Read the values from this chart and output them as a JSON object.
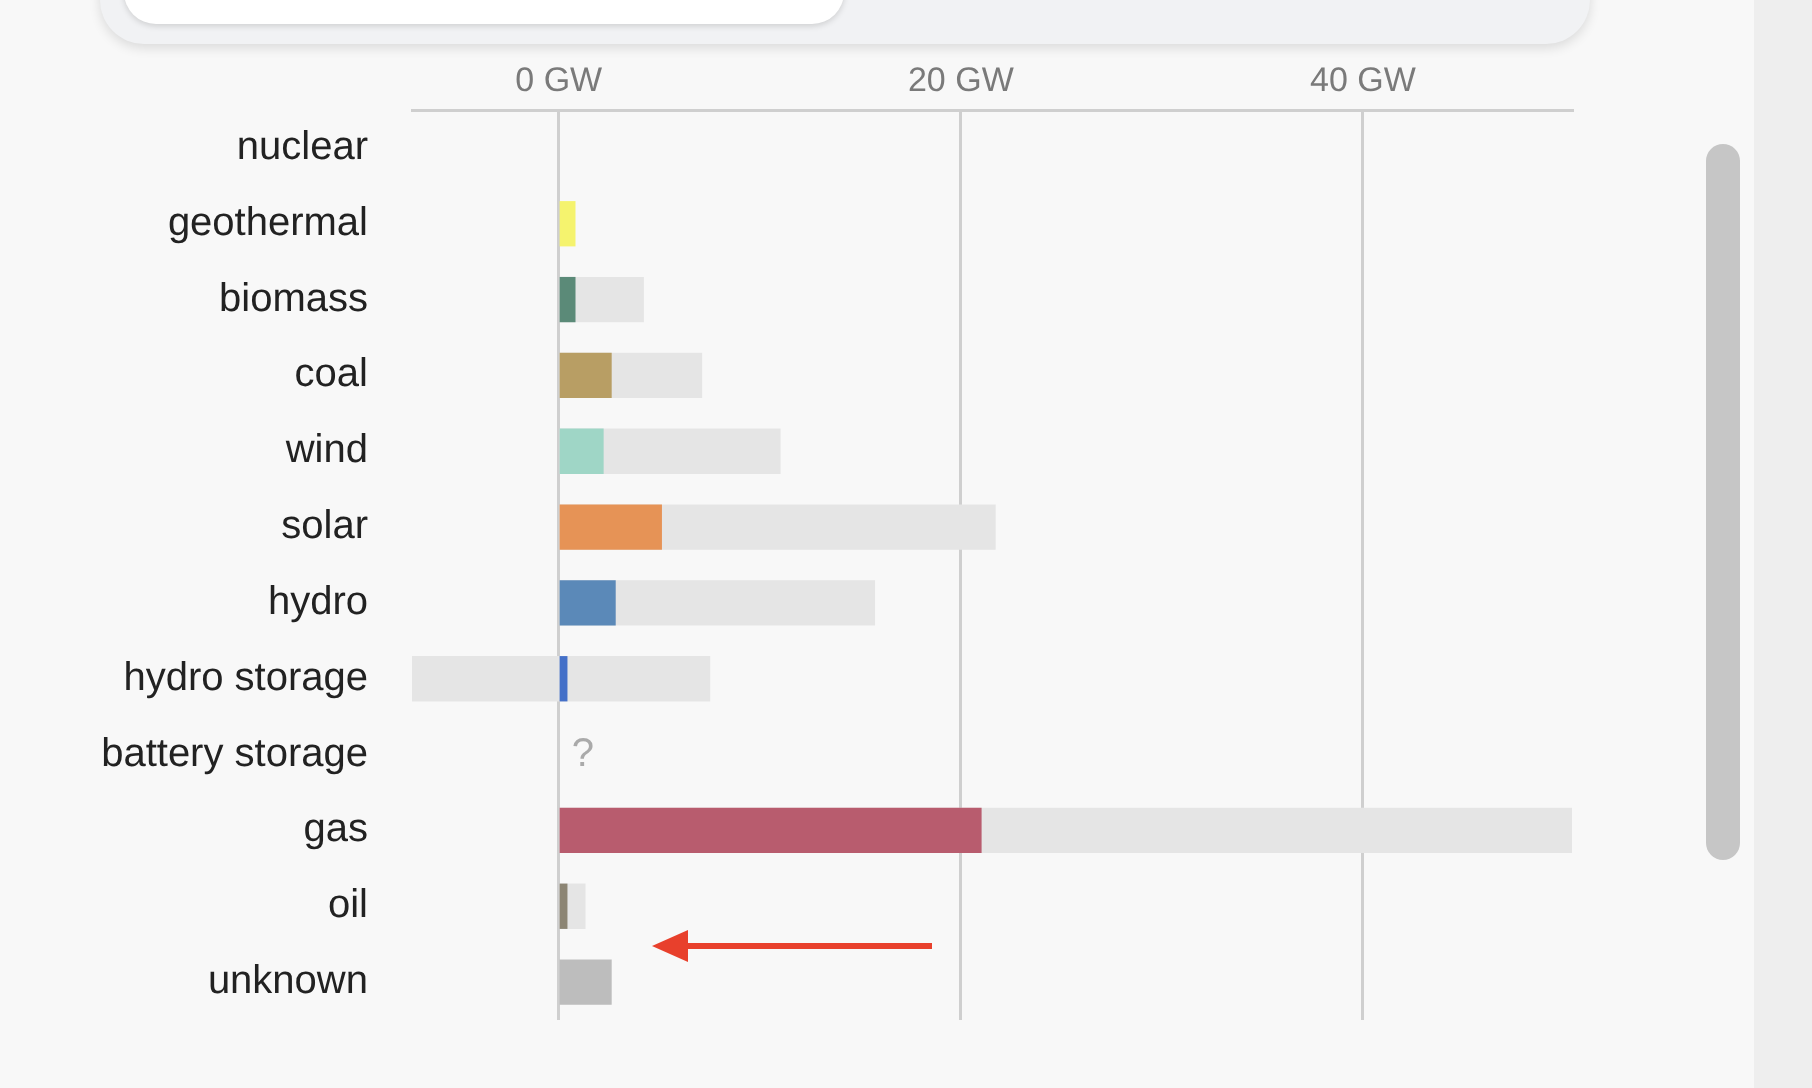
{
  "chart_data": {
    "type": "bar",
    "orientation": "horizontal",
    "categories": [
      "nuclear",
      "geothermal",
      "biomass",
      "coal",
      "wind",
      "solar",
      "hydro",
      "hydro storage",
      "battery storage",
      "gas",
      "oil",
      "unknown"
    ],
    "series": [
      {
        "color": "#e5e5e5",
        "base": [
          null,
          null,
          0,
          0,
          0,
          0,
          0,
          -7.3,
          null,
          0,
          0,
          null
        ],
        "values": [
          null,
          null,
          4.2,
          7.1,
          11.0,
          21.7,
          15.7,
          14.8,
          null,
          50.4,
          1.3,
          null
        ]
      },
      {
        "colors": [
          "#cccccc",
          "#f5f36e",
          "#5b8a78",
          "#b89e64",
          "#9fd6c6",
          "#e69356",
          "#5b89b8",
          "#4470c8",
          "#cccccc",
          "#b85c6e",
          "#8c8574",
          "#bdbdbd"
        ],
        "values": [
          null,
          0.8,
          0.8,
          2.6,
          2.2,
          5.1,
          2.8,
          0.4,
          null,
          21.0,
          0.4,
          2.6
        ],
        "value_labels": [
          null,
          null,
          null,
          null,
          null,
          null,
          null,
          null,
          "?",
          null,
          null,
          null
        ]
      }
    ],
    "xlim": [
      -7.3,
      50.4
    ],
    "xticks": [
      {
        "value": 0,
        "label": "0 GW"
      },
      {
        "value": 20,
        "label": "20 GW"
      },
      {
        "value": 40,
        "label": "40 GW"
      }
    ],
    "grid": "x",
    "legend": false
  }
}
